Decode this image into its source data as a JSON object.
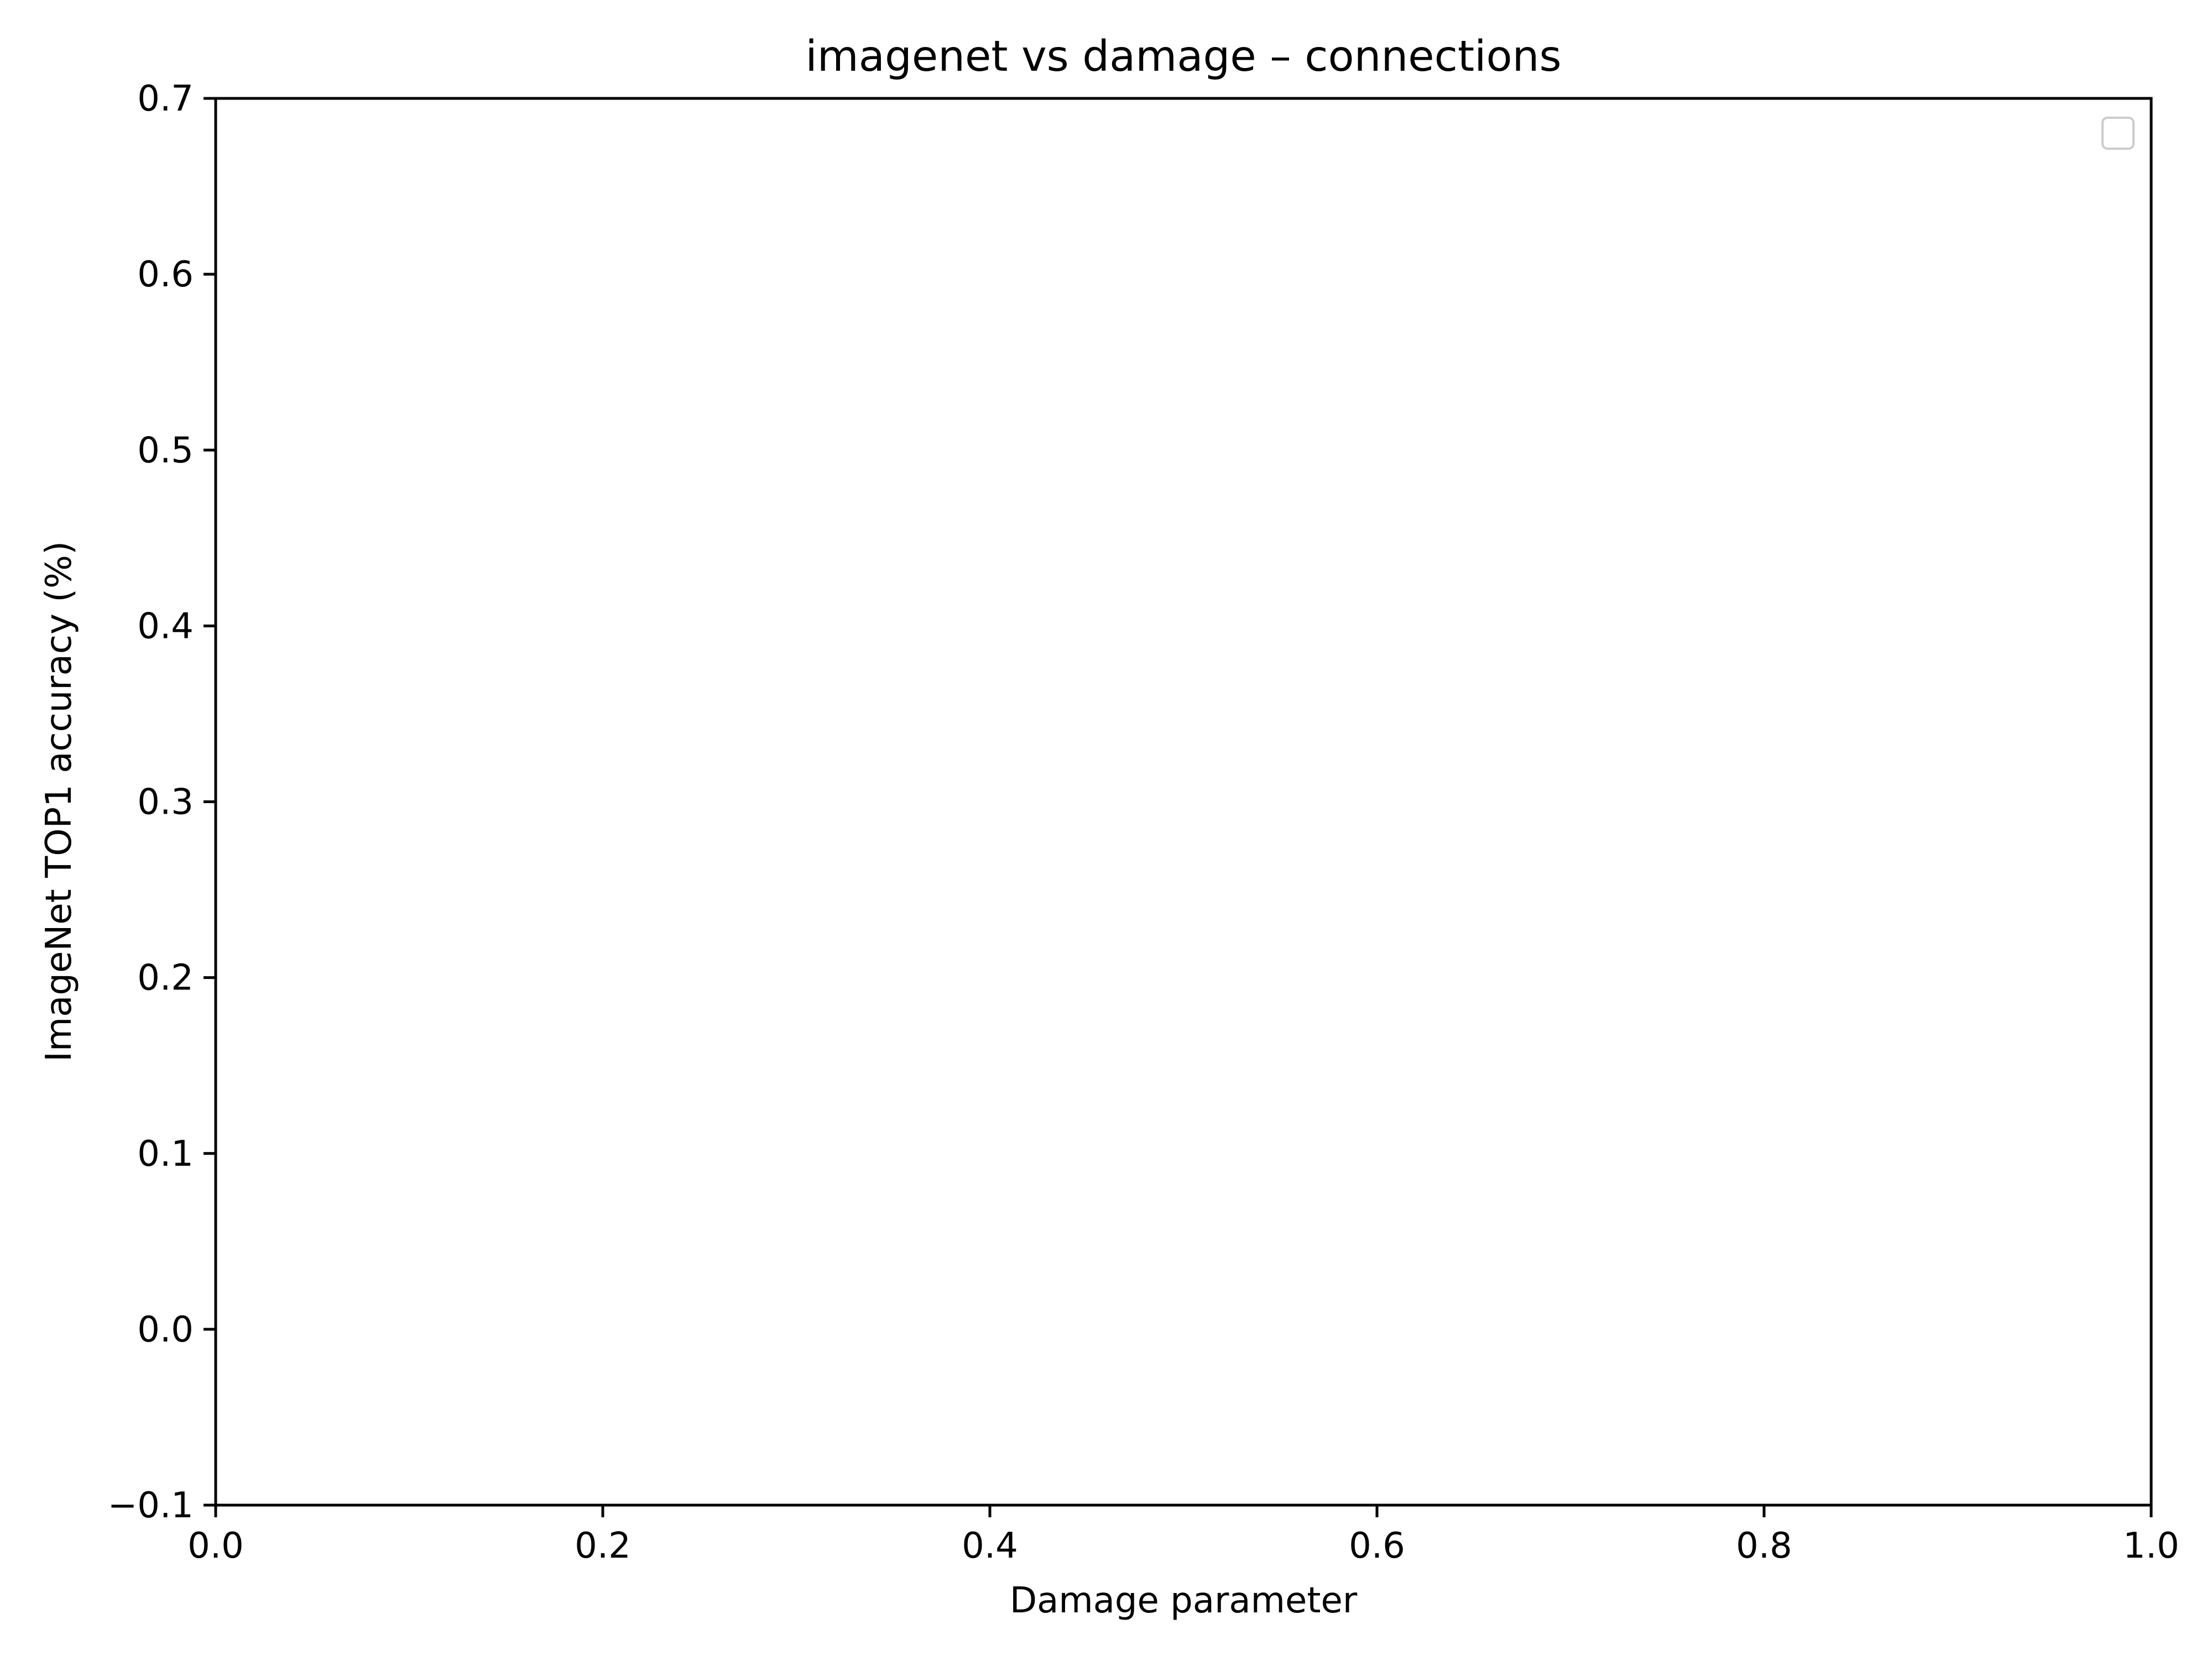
{
  "chart_data": {
    "type": "line",
    "title": "imagenet vs damage – connections",
    "xlabel": "Damage parameter",
    "ylabel": "ImageNet TOP1 accuracy (%)",
    "xlim": [
      0.0,
      1.0
    ],
    "ylim": [
      -0.1,
      0.7
    ],
    "xticks": [
      "0.0",
      "0.2",
      "0.4",
      "0.6",
      "0.8",
      "1.0"
    ],
    "yticks": [
      "−0.1",
      "0.0",
      "0.1",
      "0.2",
      "0.3",
      "0.4",
      "0.5",
      "0.6",
      "0.7"
    ],
    "grid": false,
    "legend": {
      "placement": "top-right",
      "entries": []
    },
    "series": []
  }
}
